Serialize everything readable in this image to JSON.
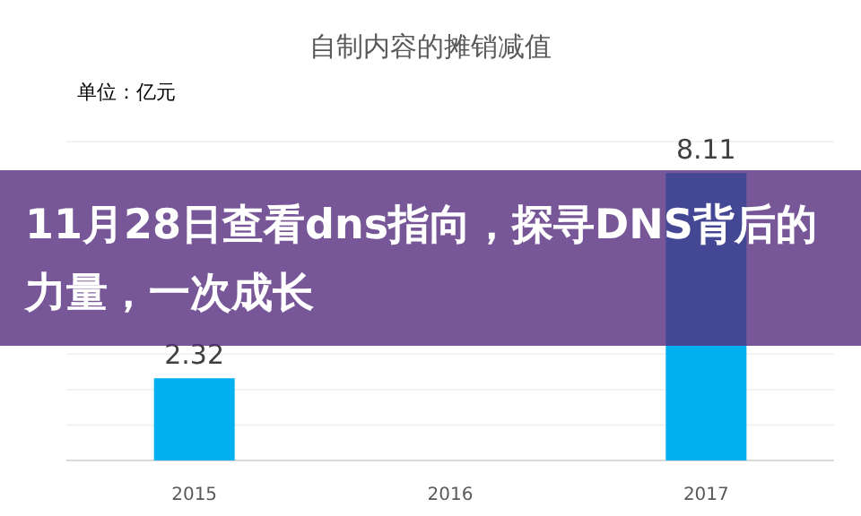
{
  "chart_data": {
    "type": "bar",
    "title": "自制内容的摊销减值",
    "annotations": [
      "单位：亿元",
      "11月28日查看dns指向，探寻DNS背后的力量，一次成长"
    ],
    "categories": [
      "2015",
      "2016",
      "2017"
    ],
    "values": [
      2.32,
      null,
      8.11
    ],
    "color": "#00b0f0",
    "ylim": [
      0,
      9
    ],
    "yticks": [
      {
        "value": 0,
        "label": null
      },
      {
        "value": 1,
        "label": null
      },
      {
        "value": 2,
        "label": null
      },
      {
        "value": 3,
        "label": null
      },
      {
        "value": 9,
        "label": null
      }
    ],
    "grid": "y",
    "data_labels": true
  }
}
